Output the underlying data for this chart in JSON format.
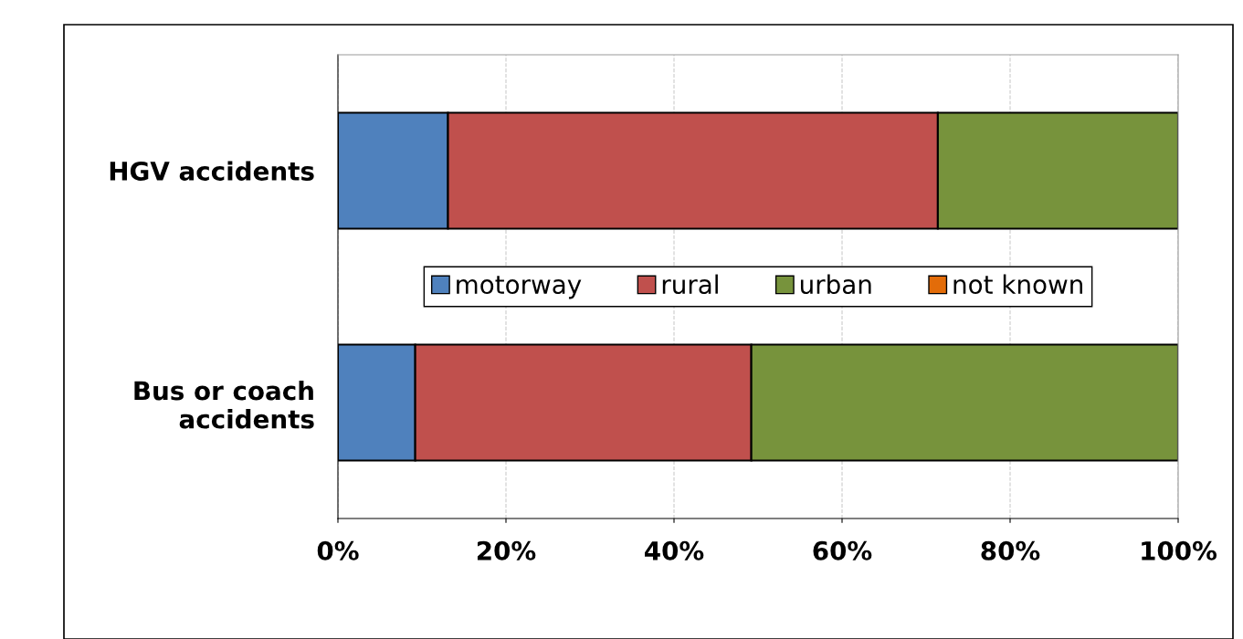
{
  "chart_data": {
    "type": "bar",
    "orientation": "horizontal",
    "stacked": true,
    "categories": [
      "HGV accidents",
      "Bus or coach\naccidents"
    ],
    "series": [
      {
        "name": "motorway",
        "color": "#4f81bd",
        "values": [
          13.1,
          9.2
        ]
      },
      {
        "name": "rural",
        "color": "#c0504d",
        "values": [
          58.3,
          40.0
        ]
      },
      {
        "name": "urban",
        "color": "#77933c",
        "values": [
          28.6,
          50.8
        ]
      },
      {
        "name": "not known",
        "color": "#e36c09",
        "values": [
          null,
          null
        ]
      }
    ],
    "xlim": [
      0,
      100
    ],
    "xticks": [
      {
        "value": 0,
        "label": "0%"
      },
      {
        "value": 20,
        "label": "20%"
      },
      {
        "value": 40,
        "label": "40%"
      },
      {
        "value": 60,
        "label": "60%"
      },
      {
        "value": 80,
        "label": "80%"
      },
      {
        "value": 100,
        "label": "100%"
      }
    ],
    "grid": "x",
    "legend": "center"
  }
}
